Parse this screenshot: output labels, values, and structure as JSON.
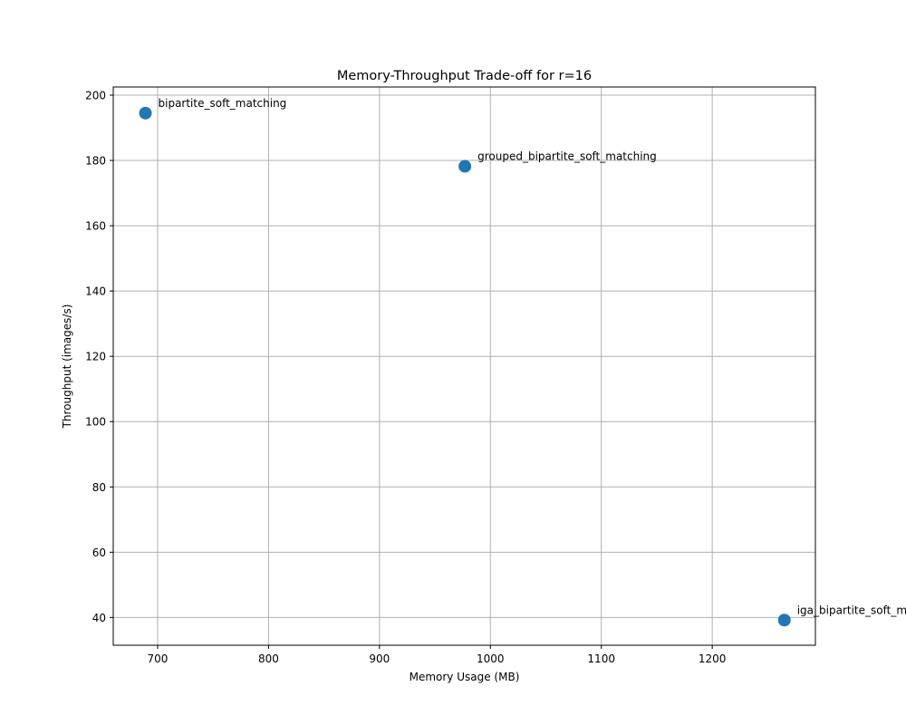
{
  "chart_data": {
    "type": "scatter",
    "title": "Memory-Throughput Trade-off for r=16",
    "xlabel": "Memory Usage (MB)",
    "ylabel": "Throughput (images/s)",
    "xlim": [
      660,
      1293
    ],
    "ylim": [
      31.5,
      202.5
    ],
    "xticks": [
      700,
      800,
      900,
      1000,
      1100,
      1200
    ],
    "yticks": [
      40,
      60,
      80,
      100,
      120,
      140,
      160,
      180,
      200
    ],
    "grid": true,
    "points": [
      {
        "x": 689,
        "y": 194.5,
        "label": "bipartite_soft_matching"
      },
      {
        "x": 977,
        "y": 178.2,
        "label": "grouped_bipartite_soft_matching"
      },
      {
        "x": 1265,
        "y": 39.2,
        "label": "iga_bipartite_soft_matching"
      }
    ],
    "colors": {
      "marker": "#1f77b4",
      "grid": "#b0b0b0",
      "axes": "#000000"
    }
  }
}
